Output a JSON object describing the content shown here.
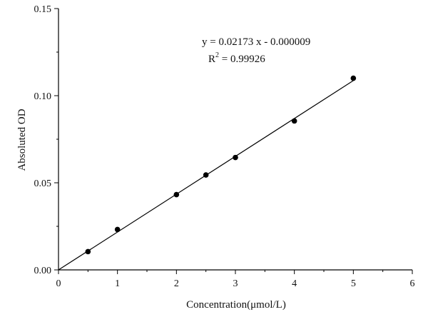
{
  "chart_data": {
    "type": "scatter",
    "xlabel": "Concentration(μmol/L)",
    "ylabel": "Absoluted OD",
    "xlim": [
      0,
      6
    ],
    "ylim": [
      0,
      0.15
    ],
    "x_ticks": [
      "0",
      "1",
      "2",
      "3",
      "4",
      "5",
      "6"
    ],
    "y_ticks": [
      "0.00",
      "0.05",
      "0.10",
      "0.15"
    ],
    "grid": false,
    "points": {
      "x": [
        0.5,
        1,
        2,
        2.5,
        3,
        4,
        5
      ],
      "y": [
        0.0105,
        0.0232,
        0.0432,
        0.0545,
        0.0645,
        0.0855,
        0.11
      ]
    },
    "fit": {
      "slope": 0.02173,
      "intercept": -9e-06,
      "x_range": [
        0,
        5
      ]
    },
    "annotation": {
      "equation": "y = 0.02173 x - 0.000009",
      "r2_prefix": "R",
      "r2_exponent": "2",
      "r2_value": " = 0.99926"
    },
    "colors": {
      "marker": "#000000",
      "line": "#000000",
      "axis": "#000000"
    }
  }
}
